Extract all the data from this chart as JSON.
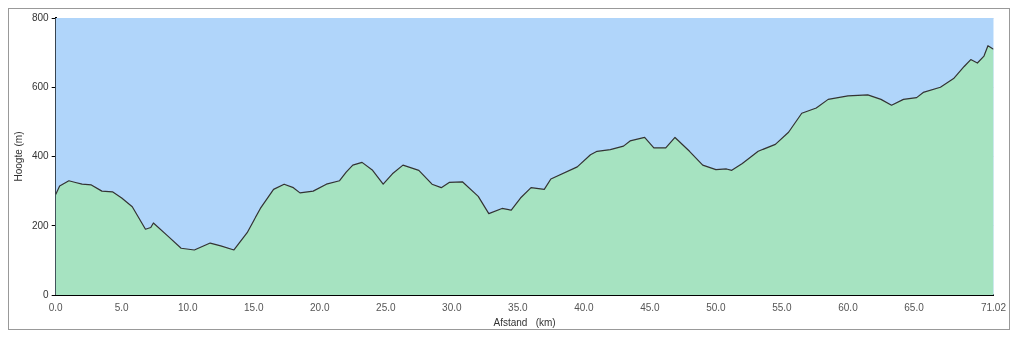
{
  "chart_data": {
    "type": "area",
    "xlabel": "Afstand   (km)",
    "ylabel": "Hoogte (m)",
    "xlim": [
      0,
      71.02
    ],
    "ylim": [
      0,
      800
    ],
    "xticks": [
      {
        "value": 0,
        "label": "0.0"
      },
      {
        "value": 5,
        "label": "5.0"
      },
      {
        "value": 10,
        "label": "10.0"
      },
      {
        "value": 15,
        "label": "15.0"
      },
      {
        "value": 20,
        "label": "20.0"
      },
      {
        "value": 25,
        "label": "25.0"
      },
      {
        "value": 30,
        "label": "30.0"
      },
      {
        "value": 35,
        "label": "35.0"
      },
      {
        "value": 40,
        "label": "40.0"
      },
      {
        "value": 45,
        "label": "45.0"
      },
      {
        "value": 50,
        "label": "50.0"
      },
      {
        "value": 55,
        "label": "55.0"
      },
      {
        "value": 60,
        "label": "60.0"
      },
      {
        "value": 65,
        "label": "65.0"
      },
      {
        "value": 71.02,
        "label": "71.02"
      }
    ],
    "yticks": [
      0,
      200,
      400,
      600,
      800
    ],
    "grid": "y",
    "legend": false,
    "x": [
      0,
      0.3,
      1.0,
      1.5,
      2.0,
      2.7,
      3.5,
      4.3,
      5.0,
      5.8,
      6.8,
      7.2,
      7.4,
      8.5,
      9.5,
      10.5,
      11.7,
      12.5,
      13.5,
      14.5,
      15.5,
      16.5,
      17.3,
      18.0,
      18.5,
      19.5,
      20.5,
      21.5,
      22.0,
      22.5,
      23.2,
      24.0,
      24.8,
      25.5,
      26.3,
      27.5,
      28.5,
      29.2,
      29.8,
      30.8,
      32.0,
      32.8,
      33.8,
      34.5,
      35.2,
      36.0,
      37.0,
      37.5,
      39.5,
      40.5,
      41.0,
      42.0,
      43.0,
      43.5,
      44.6,
      45.3,
      46.2,
      46.9,
      48.0,
      49.0,
      50.0,
      50.8,
      51.2,
      52.0,
      53.2,
      54.5,
      55.5,
      56.5,
      57.6,
      58.5,
      60.0,
      61.5,
      62.5,
      63.3,
      64.2,
      65.2,
      65.7,
      67.0,
      68.0,
      68.8,
      69.3,
      69.8,
      70.3,
      70.6,
      71.02
    ],
    "series": [
      {
        "color": "#a6e3c1",
        "values": [
          290,
          315,
          330,
          325,
          320,
          318,
          300,
          298,
          280,
          255,
          190,
          195,
          208,
          170,
          135,
          130,
          150,
          142,
          130,
          180,
          250,
          305,
          320,
          310,
          295,
          300,
          320,
          330,
          355,
          375,
          383,
          360,
          320,
          350,
          375,
          360,
          320,
          310,
          325,
          327,
          285,
          235,
          250,
          245,
          280,
          310,
          305,
          335,
          370,
          405,
          415,
          420,
          430,
          445,
          455,
          425,
          425,
          455,
          415,
          375,
          362,
          364,
          360,
          380,
          415,
          435,
          470,
          525,
          540,
          565,
          575,
          578,
          565,
          548,
          565,
          570,
          585,
          600,
          625,
          660,
          680,
          670,
          690,
          720,
          710
        ]
      }
    ]
  }
}
